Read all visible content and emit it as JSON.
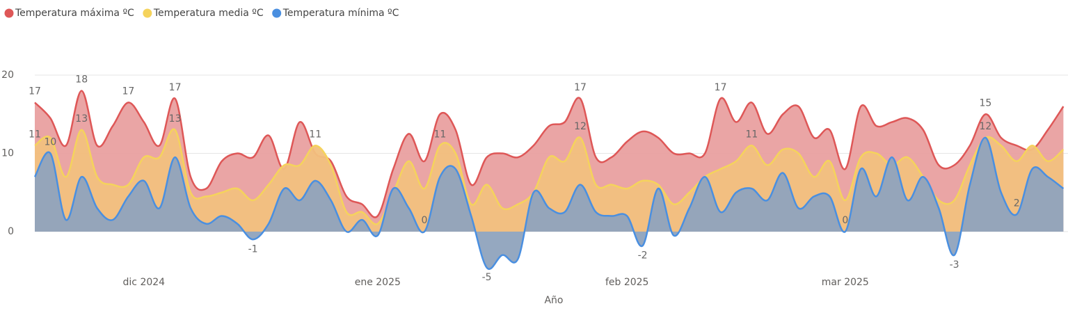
{
  "chart_data": {
    "type": "area",
    "xlabel": "Año",
    "categories": [
      null,
      null,
      null,
      null,
      null,
      null,
      null,
      "dic 2024",
      null,
      null,
      null,
      null,
      null,
      null,
      null,
      null,
      null,
      null,
      null,
      null,
      null,
      null,
      "ene 2025",
      null,
      null,
      null,
      null,
      null,
      null,
      null,
      null,
      null,
      null,
      null,
      null,
      null,
      null,
      null,
      "feb 2025",
      null,
      null,
      null,
      null,
      null,
      null,
      null,
      null,
      null,
      null,
      null,
      null,
      null,
      "mar 2025",
      null,
      null,
      null,
      null,
      null,
      null,
      null,
      null,
      null,
      null,
      null,
      null,
      null,
      null
    ],
    "ylim": [
      -5,
      25
    ],
    "yticks": [
      0,
      10,
      20
    ],
    "grid": true,
    "legend": "top-left",
    "series": [
      {
        "name": "Temperatura máxima ºC",
        "color": "#de5757",
        "fill": "#e9a0a0",
        "values": [
          16.5,
          14.5,
          11,
          18,
          11,
          13.5,
          16.5,
          14,
          11,
          17,
          7,
          5.5,
          9,
          10,
          9.5,
          12.3,
          8,
          14,
          10,
          9,
          4.5,
          3.5,
          2,
          8,
          12.5,
          9,
          15,
          13,
          6,
          9.5,
          10,
          9.5,
          11,
          13.5,
          14,
          17,
          9.5,
          9.5,
          11.5,
          12.8,
          12,
          10,
          10,
          10,
          17,
          14,
          16.5,
          12.5,
          15,
          16,
          12,
          13,
          8,
          16,
          13.5,
          14,
          14.5,
          13,
          8.5,
          8.5,
          11,
          15,
          12,
          11,
          10.5,
          13,
          16
        ],
        "value_labels": [
          "17",
          null,
          null,
          "18",
          null,
          null,
          "17",
          null,
          null,
          "17",
          null,
          null,
          null,
          null,
          null,
          null,
          null,
          null,
          null,
          null,
          null,
          null,
          null,
          null,
          null,
          null,
          null,
          null,
          null,
          null,
          null,
          null,
          null,
          null,
          null,
          "17",
          null,
          null,
          null,
          null,
          null,
          null,
          null,
          null,
          "17",
          null,
          null,
          null,
          null,
          null,
          null,
          null,
          null,
          null,
          null,
          null,
          null,
          null,
          null,
          null,
          null,
          "15",
          null,
          null,
          null,
          null,
          null
        ]
      },
      {
        "name": "Temperatura media ºC",
        "color": "#f5d35c",
        "fill": "#f2c07e",
        "values": [
          11,
          12,
          7,
          13,
          7,
          6,
          6,
          9.5,
          9.5,
          13,
          5,
          4.5,
          5,
          5.5,
          4,
          6,
          8.5,
          8.5,
          11,
          8.5,
          2.5,
          2.5,
          1,
          5,
          9,
          5.5,
          11,
          10,
          3.5,
          6,
          3,
          3.5,
          5,
          9.5,
          9,
          12,
          6,
          6,
          5.5,
          6.5,
          6,
          3.5,
          5,
          7,
          8,
          9,
          11,
          8.5,
          10.5,
          10,
          7,
          9,
          4,
          9.5,
          10,
          8.5,
          9.5,
          7,
          4,
          4,
          8.5,
          12,
          11,
          9,
          11,
          9,
          10.5
        ],
        "value_labels": [
          "11",
          null,
          null,
          "13",
          null,
          null,
          null,
          null,
          null,
          "13",
          null,
          null,
          null,
          null,
          null,
          null,
          null,
          null,
          "11",
          null,
          null,
          null,
          null,
          null,
          null,
          null,
          "11",
          null,
          null,
          null,
          null,
          null,
          null,
          null,
          null,
          "12",
          null,
          null,
          null,
          null,
          null,
          null,
          null,
          null,
          null,
          null,
          "11",
          null,
          null,
          null,
          null,
          null,
          null,
          null,
          null,
          null,
          null,
          null,
          null,
          null,
          null,
          "12",
          null,
          null,
          null,
          null,
          null
        ]
      },
      {
        "name": "Temperatura mínima  ºC",
        "color": "#4a8fe0",
        "fill": "#8fa3bd",
        "values": [
          7,
          10,
          1.5,
          7,
          3,
          1.5,
          4.5,
          6.5,
          3,
          9.5,
          3,
          1,
          2,
          1,
          -1,
          1,
          5.5,
          4,
          6.5,
          4,
          0,
          1.5,
          -0.5,
          5.5,
          3,
          0,
          7,
          8,
          2,
          -4.6,
          -3,
          -3.5,
          5,
          3,
          2.5,
          6,
          2.5,
          2,
          2,
          -1.8,
          5.5,
          -0.5,
          3,
          7,
          2.5,
          5,
          5.5,
          4,
          7.5,
          3,
          4.5,
          4.5,
          0,
          8,
          4.5,
          9.5,
          4,
          7,
          3,
          -3,
          6,
          12,
          5,
          2.2,
          8,
          7,
          5.5
        ],
        "value_labels": [
          null,
          "10",
          null,
          null,
          null,
          null,
          null,
          null,
          null,
          null,
          null,
          null,
          null,
          null,
          "-1",
          null,
          null,
          null,
          null,
          null,
          null,
          null,
          null,
          null,
          null,
          "0",
          null,
          null,
          null,
          "-5",
          null,
          null,
          null,
          null,
          null,
          null,
          null,
          null,
          null,
          "-2",
          null,
          null,
          null,
          null,
          null,
          null,
          null,
          null,
          null,
          null,
          null,
          null,
          "0",
          null,
          null,
          null,
          null,
          null,
          null,
          "-3",
          null,
          null,
          null,
          "2",
          null,
          null,
          null
        ]
      }
    ]
  }
}
